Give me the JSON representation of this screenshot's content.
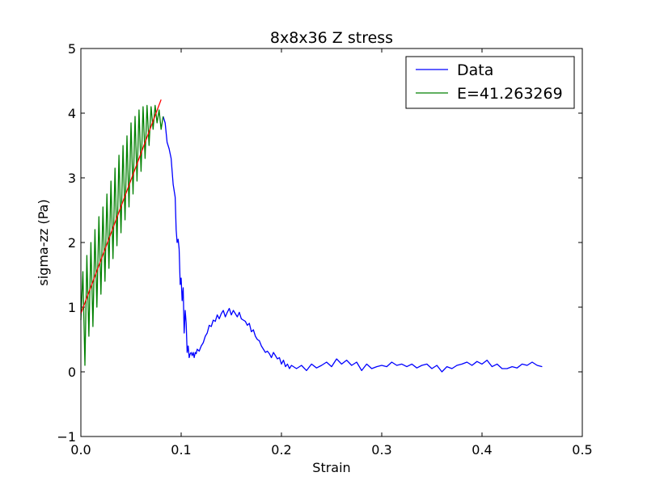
{
  "chart_data": {
    "type": "line",
    "title": "8x8x36 Z stress",
    "xlabel": "Strain",
    "ylabel": "sigma-zz (Pa)",
    "xlim": [
      0.0,
      0.5
    ],
    "ylim": [
      -1,
      5
    ],
    "x_ticks": [
      "0.0",
      "0.1",
      "0.2",
      "0.3",
      "0.4",
      "0.5"
    ],
    "y_ticks": [
      "−1",
      "0",
      "1",
      "2",
      "3",
      "4",
      "5"
    ],
    "grid": false,
    "legend_position": "top-right",
    "series": [
      {
        "name": "Data",
        "color": "#0000ff",
        "x": [
          0.082,
          0.084,
          0.086,
          0.088,
          0.09,
          0.092,
          0.094,
          0.095,
          0.096,
          0.097,
          0.098,
          0.099,
          0.1,
          0.101,
          0.102,
          0.103,
          0.104,
          0.105,
          0.106,
          0.107,
          0.108,
          0.109,
          0.11,
          0.111,
          0.112,
          0.113,
          0.114,
          0.115,
          0.116,
          0.118,
          0.12,
          0.122,
          0.124,
          0.126,
          0.128,
          0.13,
          0.132,
          0.134,
          0.136,
          0.138,
          0.14,
          0.142,
          0.144,
          0.146,
          0.148,
          0.15,
          0.152,
          0.154,
          0.156,
          0.158,
          0.16,
          0.162,
          0.164,
          0.166,
          0.168,
          0.17,
          0.172,
          0.174,
          0.176,
          0.178,
          0.18,
          0.182,
          0.184,
          0.186,
          0.188,
          0.19,
          0.192,
          0.194,
          0.196,
          0.198,
          0.2,
          0.202,
          0.204,
          0.206,
          0.208,
          0.21,
          0.215,
          0.22,
          0.225,
          0.23,
          0.235,
          0.24,
          0.245,
          0.25,
          0.255,
          0.26,
          0.265,
          0.27,
          0.275,
          0.28,
          0.285,
          0.29,
          0.295,
          0.3,
          0.305,
          0.31,
          0.315,
          0.32,
          0.325,
          0.33,
          0.335,
          0.34,
          0.345,
          0.35,
          0.355,
          0.36,
          0.365,
          0.37,
          0.375,
          0.38,
          0.385,
          0.39,
          0.395,
          0.4,
          0.405,
          0.41,
          0.415,
          0.42,
          0.425,
          0.43,
          0.435,
          0.44,
          0.445,
          0.45,
          0.455,
          0.46
        ],
        "y": [
          3.95,
          3.85,
          3.55,
          3.45,
          3.3,
          2.9,
          2.7,
          2.2,
          2.0,
          2.05,
          1.9,
          1.35,
          1.45,
          1.1,
          1.3,
          0.6,
          0.95,
          0.75,
          0.3,
          0.4,
          0.22,
          0.28,
          0.3,
          0.25,
          0.3,
          0.22,
          0.3,
          0.28,
          0.35,
          0.32,
          0.4,
          0.45,
          0.55,
          0.6,
          0.72,
          0.7,
          0.8,
          0.78,
          0.88,
          0.82,
          0.9,
          0.95,
          0.85,
          0.92,
          0.98,
          0.88,
          0.95,
          0.9,
          0.85,
          0.92,
          0.82,
          0.8,
          0.78,
          0.72,
          0.75,
          0.62,
          0.65,
          0.55,
          0.5,
          0.48,
          0.4,
          0.35,
          0.3,
          0.32,
          0.28,
          0.22,
          0.3,
          0.25,
          0.2,
          0.22,
          0.12,
          0.18,
          0.08,
          0.12,
          0.05,
          0.1,
          0.05,
          0.1,
          0.02,
          0.12,
          0.06,
          0.1,
          0.15,
          0.08,
          0.2,
          0.12,
          0.18,
          0.1,
          0.15,
          0.02,
          0.12,
          0.05,
          0.08,
          0.1,
          0.08,
          0.15,
          0.1,
          0.12,
          0.08,
          0.12,
          0.06,
          0.1,
          0.12,
          0.05,
          0.1,
          0.0,
          0.08,
          0.05,
          0.1,
          0.12,
          0.15,
          0.1,
          0.16,
          0.12,
          0.18,
          0.08,
          0.12,
          0.05,
          0.05,
          0.08,
          0.06,
          0.12,
          0.1,
          0.15,
          0.1,
          0.08
        ]
      },
      {
        "name": "E=41.263269",
        "color": "#008000",
        "x": [
          0.0,
          0.002,
          0.004,
          0.006,
          0.008,
          0.01,
          0.012,
          0.014,
          0.016,
          0.018,
          0.02,
          0.022,
          0.024,
          0.026,
          0.028,
          0.03,
          0.032,
          0.034,
          0.036,
          0.038,
          0.04,
          0.042,
          0.044,
          0.046,
          0.048,
          0.05,
          0.052,
          0.054,
          0.056,
          0.058,
          0.06,
          0.062,
          0.064,
          0.066,
          0.068,
          0.07,
          0.072,
          0.074,
          0.076,
          0.078,
          0.08,
          0.082
        ],
        "y": [
          0.8,
          1.55,
          0.1,
          1.8,
          0.55,
          2.0,
          0.7,
          2.2,
          1.0,
          2.4,
          1.2,
          2.55,
          1.4,
          2.75,
          1.6,
          2.95,
          1.75,
          3.15,
          1.95,
          3.35,
          2.15,
          3.5,
          2.35,
          3.65,
          2.55,
          3.85,
          2.75,
          3.95,
          2.95,
          4.05,
          3.1,
          4.1,
          3.3,
          4.12,
          3.5,
          4.1,
          3.75,
          4.12,
          3.85,
          4.05,
          3.75,
          3.95
        ]
      },
      {
        "name": "",
        "color": "#ff0000",
        "x": [
          0.0,
          0.08
        ],
        "y": [
          0.9,
          4.21
        ]
      }
    ]
  }
}
